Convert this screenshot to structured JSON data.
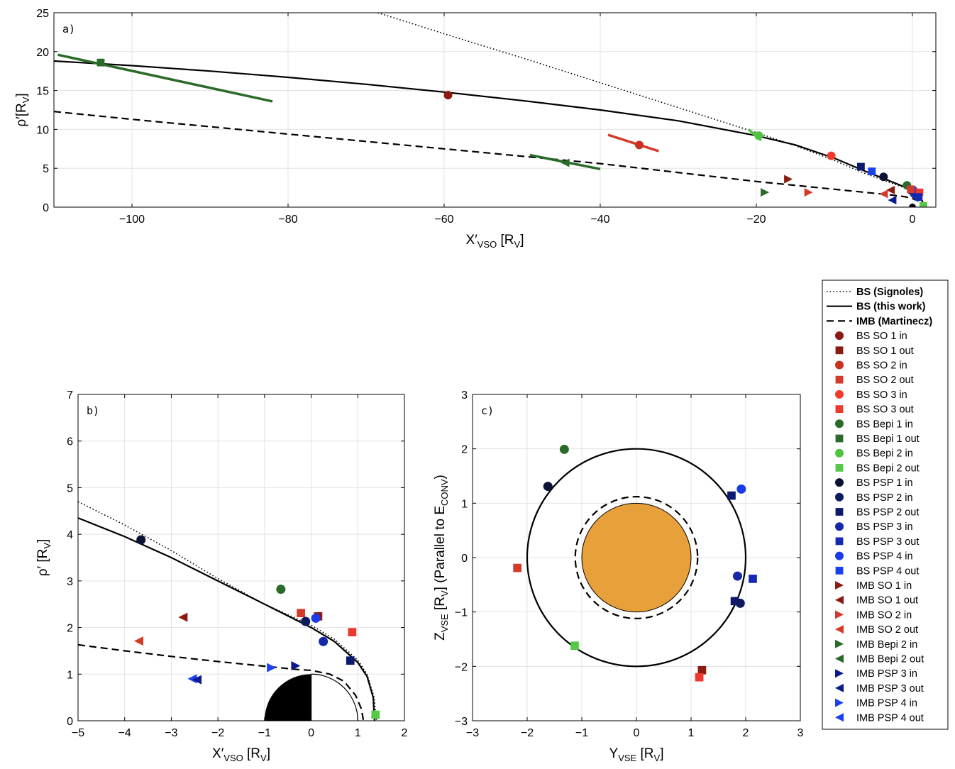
{
  "chart_data": [
    {
      "panel_label": "a)",
      "type": "scatter",
      "xlabel": {
        "main": "X′",
        "sub": "VSO",
        "unit": " [R",
        "unit_sub": "V",
        "close": "]"
      },
      "ylabel": {
        "main": "ρ′[R",
        "sub": "V",
        "close": "]"
      },
      "xlim": [
        -110,
        3
      ],
      "ylim": [
        0,
        25
      ],
      "xticks": [
        -100,
        -80,
        -60,
        -40,
        -20,
        0
      ],
      "yticks": [
        0,
        5,
        10,
        15,
        20,
        25
      ],
      "grid": true,
      "curves": [
        {
          "name": "BS (Signoles)",
          "style": "dotted",
          "points": [
            [
              -68.5,
              25
            ],
            [
              -60,
              22.3
            ],
            [
              -50,
              19.2
            ],
            [
              -40,
              16.0
            ],
            [
              -30,
              12.8
            ],
            [
              -20,
              9.6
            ],
            [
              -15,
              7.9
            ],
            [
              -10,
              6.0
            ],
            [
              -6,
              4.3
            ],
            [
              -3,
              3.2
            ],
            [
              -1,
              2.5
            ],
            [
              0,
              2.0
            ],
            [
              0.8,
              1.5
            ],
            [
              1.3,
              0.8
            ],
            [
              1.45,
              0
            ]
          ]
        },
        {
          "name": "BS (this work)",
          "style": "solid",
          "points": [
            [
              -110,
              18.8
            ],
            [
              -100,
              18.2
            ],
            [
              -90,
              17.5
            ],
            [
              -80,
              16.7
            ],
            [
              -70,
              15.8
            ],
            [
              -60,
              14.8
            ],
            [
              -50,
              13.7
            ],
            [
              -40,
              12.5
            ],
            [
              -30,
              11.1
            ],
            [
              -20,
              9.2
            ],
            [
              -15,
              8.0
            ],
            [
              -10,
              6.3
            ],
            [
              -6,
              4.6
            ],
            [
              -3,
              3.4
            ],
            [
              -1,
              2.6
            ],
            [
              0,
              2.1
            ],
            [
              0.8,
              1.5
            ],
            [
              1.25,
              0.8
            ],
            [
              1.4,
              0
            ]
          ]
        },
        {
          "name": "IMB (Martinecz)",
          "style": "dashed",
          "points": [
            [
              -110,
              12.3
            ],
            [
              -100,
              11.3
            ],
            [
              -80,
              9.4
            ],
            [
              -60,
              7.5
            ],
            [
              -40,
              5.6
            ],
            [
              -20,
              3.3
            ],
            [
              -10,
              2.3
            ],
            [
              -3,
              1.6
            ],
            [
              -1,
              1.35
            ],
            [
              0,
              1.1
            ],
            [
              0.8,
              0.8
            ],
            [
              1.05,
              0.4
            ],
            [
              1.1,
              0
            ]
          ]
        }
      ],
      "segments": [
        {
          "color": "#2a6b2a",
          "from": [
            -109.5,
            19.6
          ],
          "to": [
            -82,
            13.6
          ]
        },
        {
          "color": "#2a6b2a",
          "from": [
            -49,
            6.7
          ],
          "to": [
            -40,
            4.9
          ]
        },
        {
          "color": "#d43a2a",
          "from": [
            -39,
            9.3
          ],
          "to": [
            -32.5,
            7.2
          ]
        },
        {
          "color": "#4fc23f",
          "from": [
            -21,
            10.0
          ],
          "to": [
            -19.4,
            8.6
          ]
        }
      ],
      "points": [
        {
          "series": "BS SO 1 in",
          "x": -59.5,
          "y": 14.4
        },
        {
          "series": "BS SO 2 in",
          "x": -35.0,
          "y": 8.0
        },
        {
          "series": "BS SO 3 in",
          "x": -10.4,
          "y": 6.6
        },
        {
          "series": "BS Bepi 1 out",
          "x": -104.0,
          "y": 18.6
        },
        {
          "series": "BS Bepi 2 in",
          "x": -19.7,
          "y": 9.2
        },
        {
          "series": "IMB Bepi 2 out",
          "x": -44.5,
          "y": 5.7
        },
        {
          "series": "IMB SO 1 in",
          "x": -15.9,
          "y": 3.6
        },
        {
          "series": "IMB SO 2 in",
          "x": -13.3,
          "y": 1.9
        },
        {
          "series": "IMB Bepi 2 in",
          "x": -18.9,
          "y": 1.9
        },
        {
          "series": "BS PSP 2 out",
          "x": -6.6,
          "y": 5.2
        },
        {
          "series": "BS PSP 4 out",
          "x": -5.2,
          "y": 4.6
        },
        {
          "series": "BS PSP 1 in",
          "x": -3.7,
          "y": 3.9
        },
        {
          "series": "BS Bepi 1 in",
          "x": -0.7,
          "y": 2.8
        },
        {
          "series": "IMB SO 1 out",
          "x": -2.8,
          "y": 2.2
        },
        {
          "series": "IMB SO 2 out",
          "x": -3.7,
          "y": 1.7
        },
        {
          "series": "IMB PSP 3 out",
          "x": -2.6,
          "y": 0.9
        },
        {
          "series": "BS PSP 2 in",
          "x": -0.15,
          "y": 2.15
        },
        {
          "series": "BS PSP 4 in",
          "x": 0.1,
          "y": 2.2
        },
        {
          "series": "BS PSP 3 in",
          "x": 0.25,
          "y": 1.7
        },
        {
          "series": "BS SO 3 out",
          "x": 0.9,
          "y": 1.9
        },
        {
          "series": "BS SO 2 out",
          "x": -0.2,
          "y": 2.3
        },
        {
          "series": "BS PSP 3 out",
          "x": 0.8,
          "y": 1.3
        },
        {
          "series": "BS Bepi 2 out",
          "x": 1.4,
          "y": 0.15
        }
      ]
    },
    {
      "panel_label": "b)",
      "type": "scatter",
      "xlabel": {
        "main": "X′",
        "sub": "VSO",
        "unit": " [R",
        "unit_sub": "V",
        "close": "]"
      },
      "ylabel": {
        "main": "ρ′ [R",
        "sub": "V",
        "close": "]"
      },
      "xlim": [
        -5,
        2
      ],
      "ylim": [
        0,
        7
      ],
      "xticks": [
        -5,
        -4,
        -3,
        -2,
        -1,
        0,
        1,
        2
      ],
      "yticks": [
        0,
        1,
        2,
        3,
        4,
        5,
        6,
        7
      ],
      "grid": true,
      "planet_radius": 1,
      "curves": [
        {
          "name": "BS (Signoles)",
          "style": "dotted",
          "points": [
            [
              -5,
              4.7
            ],
            [
              -4,
              4.2
            ],
            [
              -3,
              3.65
            ],
            [
              -2,
              3.05
            ],
            [
              -1,
              2.5
            ],
            [
              0,
              2.05
            ],
            [
              0.5,
              1.75
            ],
            [
              1.0,
              1.3
            ],
            [
              1.2,
              1.0
            ],
            [
              1.35,
              0.5
            ],
            [
              1.4,
              0
            ]
          ]
        },
        {
          "name": "BS (this work)",
          "style": "solid",
          "points": [
            [
              -5,
              4.35
            ],
            [
              -4,
              3.95
            ],
            [
              -3,
              3.5
            ],
            [
              -2,
              3.0
            ],
            [
              -1,
              2.5
            ],
            [
              0,
              2.0
            ],
            [
              0.5,
              1.7
            ],
            [
              1.0,
              1.25
            ],
            [
              1.2,
              0.95
            ],
            [
              1.33,
              0.5
            ],
            [
              1.36,
              0
            ]
          ]
        },
        {
          "name": "IMB (Martinecz)",
          "style": "dashed",
          "points": [
            [
              -5,
              1.63
            ],
            [
              -4,
              1.5
            ],
            [
              -3,
              1.38
            ],
            [
              -2,
              1.27
            ],
            [
              -1,
              1.17
            ],
            [
              -0.3,
              1.1
            ],
            [
              0,
              1.08
            ],
            [
              0.4,
              1.0
            ],
            [
              0.7,
              0.85
            ],
            [
              0.95,
              0.55
            ],
            [
              1.08,
              0.25
            ],
            [
              1.12,
              0
            ]
          ]
        }
      ],
      "points": [
        {
          "series": "BS PSP 1 in",
          "x": -3.65,
          "y": 3.88
        },
        {
          "series": "BS Bepi 1 in",
          "x": -0.65,
          "y": 2.82
        },
        {
          "series": "IMB SO 1 out",
          "x": -2.75,
          "y": 2.22
        },
        {
          "series": "IMB SO 2 out",
          "x": -3.7,
          "y": 1.71
        },
        {
          "series": "BS SO 2 out",
          "x": -0.22,
          "y": 2.31
        },
        {
          "series": "BS SO 1 out",
          "x": 0.15,
          "y": 2.24
        },
        {
          "series": "BS PSP 4 in",
          "x": 0.1,
          "y": 2.2
        },
        {
          "series": "BS PSP 2 in",
          "x": -0.12,
          "y": 2.13
        },
        {
          "series": "BS PSP 3 in",
          "x": 0.26,
          "y": 1.7
        },
        {
          "series": "BS SO 3 out",
          "x": 0.88,
          "y": 1.9
        },
        {
          "series": "BS PSP 2 out",
          "x": 0.84,
          "y": 1.29
        },
        {
          "series": "IMB PSP 4 in",
          "x": -0.85,
          "y": 1.14
        },
        {
          "series": "IMB PSP 3 in",
          "x": -0.33,
          "y": 1.18
        },
        {
          "series": "IMB PSP 4 out",
          "x": -2.55,
          "y": 0.9
        },
        {
          "series": "IMB PSP 3 out",
          "x": -2.45,
          "y": 0.88
        },
        {
          "series": "BS Bepi 2 out",
          "x": 1.38,
          "y": 0.13
        }
      ]
    },
    {
      "panel_label": "c)",
      "type": "scatter",
      "xlabel": {
        "main": "Y",
        "sub": "VSE",
        "unit": " [R",
        "unit_sub": "V",
        "close": "]"
      },
      "ylabel": {
        "main": "Z",
        "sub": "VSE",
        "unit": " [R",
        "unit_sub": "V",
        "close": "] (Parallel to E",
        "close_sub": "CONV",
        "end": ")"
      },
      "xlim": [
        -3,
        3
      ],
      "ylim": [
        -3,
        3
      ],
      "xticks": [
        -3,
        -2,
        -1,
        0,
        1,
        2,
        3
      ],
      "yticks": [
        -3,
        -2,
        -1,
        0,
        1,
        2,
        3
      ],
      "grid": true,
      "planet_radius": 1,
      "planet_color": "#e8a03a",
      "circles": [
        {
          "name": "BS (this work)",
          "style": "solid",
          "r": 2.0
        },
        {
          "name": "IMB (Martinecz)",
          "style": "dashed",
          "r": 1.12
        }
      ],
      "points": [
        {
          "series": "BS Bepi 1 in",
          "x": -1.32,
          "y": 1.99
        },
        {
          "series": "BS PSP 1 in",
          "x": -1.62,
          "y": 1.31
        },
        {
          "series": "BS PSP 2 out",
          "x": 1.74,
          "y": 1.14
        },
        {
          "series": "BS PSP 4 in",
          "x": 1.92,
          "y": 1.26
        },
        {
          "series": "BS SO 2 out",
          "x": -2.18,
          "y": -0.19
        },
        {
          "series": "BS PSP 3 in",
          "x": 1.85,
          "y": -0.34
        },
        {
          "series": "BS PSP 3 out",
          "x": 2.13,
          "y": -0.39
        },
        {
          "series": "BS PSP 2 out",
          "x": 1.8,
          "y": -0.8
        },
        {
          "series": "BS PSP 2 in",
          "x": 1.9,
          "y": -0.84
        },
        {
          "series": "BS Bepi 2 out",
          "x": -1.13,
          "y": -1.62
        },
        {
          "series": "BS SO 1 out",
          "x": 1.2,
          "y": -2.07
        },
        {
          "series": "BS SO 3 out",
          "x": 1.15,
          "y": -2.2
        }
      ]
    }
  ],
  "legend": {
    "placement": "right",
    "lines": [
      {
        "label": "BS (Signoles)",
        "style": "dotted"
      },
      {
        "label": "BS (this work)",
        "style": "solid"
      },
      {
        "label": "IMB (Martinecz)",
        "style": "dashed"
      }
    ],
    "series": [
      {
        "label": "BS SO 1 in",
        "marker": "circle",
        "color": "#8b1a12"
      },
      {
        "label": "BS SO 1 out",
        "marker": "square",
        "color": "#8b1a12"
      },
      {
        "label": "BS SO 2 in",
        "marker": "circle",
        "color": "#c8321e"
      },
      {
        "label": "BS SO 2 out",
        "marker": "square",
        "color": "#d43a2a"
      },
      {
        "label": "BS SO 3 in",
        "marker": "circle",
        "color": "#ee3b2b"
      },
      {
        "label": "BS SO 3 out",
        "marker": "square",
        "color": "#f0392e"
      },
      {
        "label": "BS Bepi 1 in",
        "marker": "circle",
        "color": "#2a6b2a"
      },
      {
        "label": "BS Bepi 1 out",
        "marker": "square",
        "color": "#2a6b2a"
      },
      {
        "label": "BS Bepi 2 in",
        "marker": "circle",
        "color": "#4fc23f"
      },
      {
        "label": "BS Bepi 2 out",
        "marker": "square",
        "color": "#55c845"
      },
      {
        "label": "BS PSP 1 in",
        "marker": "circle",
        "color": "#0b1235"
      },
      {
        "label": "BS PSP 2 in",
        "marker": "circle",
        "color": "#0c1a5e"
      },
      {
        "label": "BS PSP 2 out",
        "marker": "square",
        "color": "#0c1a6e"
      },
      {
        "label": "BS PSP 3 in",
        "marker": "circle",
        "color": "#1428a8"
      },
      {
        "label": "BS PSP 3 out",
        "marker": "square",
        "color": "#1428b4"
      },
      {
        "label": "BS PSP 4 in",
        "marker": "circle",
        "color": "#1a3ce6"
      },
      {
        "label": "BS PSP 4 out",
        "marker": "square",
        "color": "#1a40f0"
      },
      {
        "label": "IMB SO 1 in",
        "marker": "tri-right",
        "color": "#8b1a12"
      },
      {
        "label": "IMB SO 1 out",
        "marker": "tri-left",
        "color": "#8b1a12"
      },
      {
        "label": "IMB SO 2 in",
        "marker": "tri-right",
        "color": "#d43a2a"
      },
      {
        "label": "IMB SO 2 out",
        "marker": "tri-left",
        "color": "#d43a2a"
      },
      {
        "label": "IMB Bepi 2 in",
        "marker": "tri-right",
        "color": "#2a6b2a"
      },
      {
        "label": "IMB Bepi 2 out",
        "marker": "tri-left",
        "color": "#2a6b2a"
      },
      {
        "label": "IMB PSP 3 in",
        "marker": "tri-right",
        "color": "#0c1a8e"
      },
      {
        "label": "IMB PSP 3 out",
        "marker": "tri-left",
        "color": "#0c1a8e"
      },
      {
        "label": "IMB PSP 4 in",
        "marker": "tri-right",
        "color": "#1a40f0"
      },
      {
        "label": "IMB PSP 4 out",
        "marker": "tri-left",
        "color": "#1a40f0"
      }
    ]
  }
}
